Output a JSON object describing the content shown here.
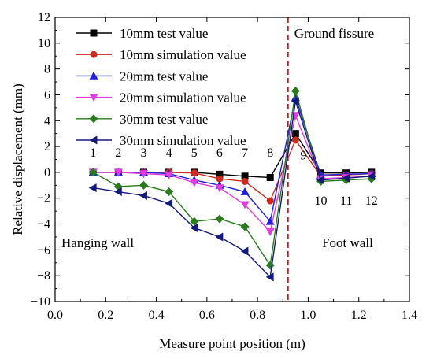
{
  "chart_data": {
    "type": "line",
    "title": "",
    "xlabel": "Measure point position (m)",
    "ylabel": "Relative displacement (mm)",
    "xlim": [
      0.0,
      1.4
    ],
    "ylim": [
      -10,
      12
    ],
    "xticks": [
      "0.0",
      "0.2",
      "0.4",
      "0.6",
      "0.8",
      "1.0",
      "1.2",
      "1.4"
    ],
    "yticks": [
      "−10",
      "−8",
      "−6",
      "−4",
      "−2",
      "0",
      "2",
      "4",
      "6",
      "8",
      "10",
      "12"
    ],
    "x": [
      0.15,
      0.25,
      0.35,
      0.45,
      0.55,
      0.65,
      0.75,
      0.85,
      0.95,
      1.05,
      1.15,
      1.25
    ],
    "point_labels": [
      "1",
      "2",
      "3",
      "4",
      "5",
      "6",
      "7",
      "8",
      "9",
      "10",
      "11",
      "12"
    ],
    "fissure_x": 0.92,
    "grid": false,
    "legend_position": "top-left",
    "annotations": {
      "fissure": "Ground fissure",
      "hanging": "Hanging wall",
      "foot": "Foot wall"
    },
    "series": [
      {
        "name": "10mm test value",
        "color": "#000000",
        "marker": "square",
        "values": [
          0.0,
          0.0,
          0.0,
          0.0,
          0.0,
          -0.15,
          -0.3,
          -0.4,
          3.0,
          -0.05,
          -0.05,
          0.0
        ]
      },
      {
        "name": "10mm simulation value",
        "color": "#cc2a1f",
        "marker": "circle",
        "values": [
          0.0,
          0.0,
          0.0,
          0.0,
          -0.05,
          -0.5,
          -0.7,
          -2.2,
          2.5,
          -0.3,
          -0.2,
          -0.1
        ]
      },
      {
        "name": "20mm test value",
        "color": "#1f1fd6",
        "marker": "triangle-up",
        "values": [
          0.0,
          0.0,
          0.0,
          -0.1,
          -0.6,
          -1.0,
          -1.5,
          -3.8,
          5.8,
          -0.2,
          -0.15,
          -0.1
        ]
      },
      {
        "name": "20mm simulation value",
        "color": "#e03ce0",
        "marker": "triangle-down",
        "values": [
          0.0,
          0.0,
          -0.1,
          -0.2,
          -0.8,
          -1.2,
          -2.5,
          -4.6,
          4.4,
          -0.5,
          -0.4,
          -0.3
        ]
      },
      {
        "name": "30mm test value",
        "color": "#2a7a1e",
        "marker": "diamond",
        "values": [
          0.0,
          -1.1,
          -1.0,
          -1.5,
          -3.8,
          -3.6,
          -4.2,
          -7.2,
          6.3,
          -0.7,
          -0.6,
          -0.5
        ]
      },
      {
        "name": "30mm simulation value",
        "color": "#141a7a",
        "marker": "triangle-left",
        "values": [
          -1.2,
          -1.5,
          -1.8,
          -2.4,
          -4.3,
          -5.0,
          -6.1,
          -8.1,
          5.5,
          -0.6,
          -0.45,
          -0.3
        ]
      }
    ]
  }
}
